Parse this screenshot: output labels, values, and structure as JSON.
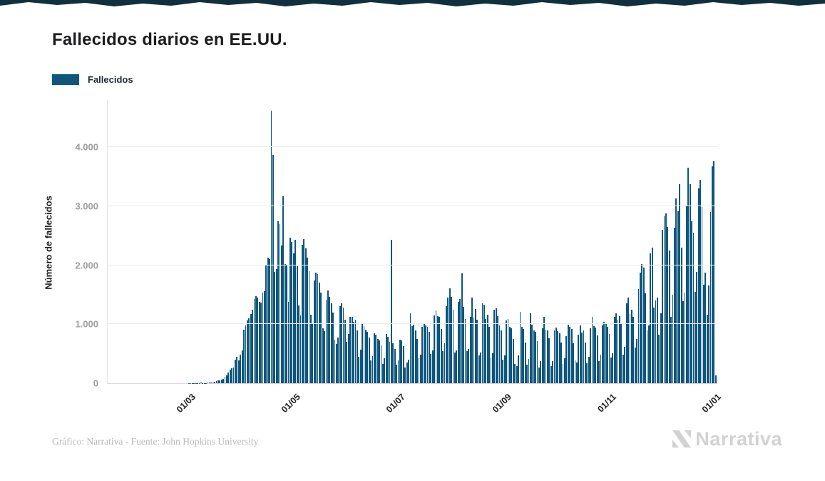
{
  "header": {
    "title": "Fallecidos diarios en EE.UU."
  },
  "legend": {
    "label": "Fallecidos",
    "color": "#0e567c"
  },
  "footer": {
    "credit": "Gráfico: Narrativa - Fuente: John Hopkins University",
    "brand": "Narrativa"
  },
  "colors": {
    "bar": "#0e567c",
    "grid": "#ececec",
    "axis_tick_text": "#9e9e9e",
    "title_text": "#1c1d1f",
    "footer_text": "#b9b9b9",
    "logo": "#d2d2d2"
  },
  "chart_data": {
    "type": "bar",
    "title": "Fallecidos diarios en EE.UU.",
    "series_name": "Fallecidos",
    "xlabel": "",
    "ylabel": "Número de fallecidos",
    "ylim": [
      0,
      4800
    ],
    "yticks": [
      0,
      1000,
      2000,
      3000,
      4000
    ],
    "ytick_labels": [
      "0",
      "1.000",
      "2.000",
      "3.000",
      "4.000"
    ],
    "xtick_labels": [
      "01/03",
      "01/05",
      "01/07",
      "01/09",
      "01/11",
      "01/01"
    ],
    "xtick_day_index": [
      48,
      109,
      170,
      232,
      293,
      354
    ],
    "x_start_date": "13/01/2020",
    "x_end_date": "01/01/2021",
    "grid": "horizontal",
    "legend_position": "top-left",
    "bar_color": "#0e567c",
    "values": [
      0,
      0,
      0,
      0,
      0,
      0,
      0,
      0,
      0,
      0,
      0,
      0,
      0,
      0,
      0,
      0,
      0,
      0,
      0,
      0,
      0,
      0,
      0,
      0,
      0,
      0,
      0,
      0,
      0,
      0,
      0,
      0,
      0,
      0,
      0,
      0,
      0,
      0,
      0,
      0,
      0,
      0,
      0,
      0,
      0,
      0,
      0,
      1,
      1,
      1,
      4,
      4,
      3,
      3,
      7,
      4,
      6,
      6,
      8,
      10,
      12,
      18,
      24,
      34,
      44,
      50,
      60,
      75,
      115,
      130,
      180,
      225,
      250,
      270,
      400,
      445,
      390,
      480,
      560,
      910,
      975,
      1060,
      1100,
      1170,
      1250,
      1430,
      1470,
      1450,
      1380,
      1370,
      1530,
      1560,
      2000,
      2130,
      2110,
      4620,
      3870,
      1890,
      1940,
      2750,
      2700,
      2330,
      3170,
      2020,
      1990,
      1380,
      2470,
      2390,
      2200,
      2430,
      1980,
      1320,
      1150,
      2350,
      2440,
      2280,
      2130,
      1900,
      1160,
      1000,
      1740,
      1880,
      1850,
      1700,
      1530,
      930,
      880,
      1420,
      1570,
      1460,
      1350,
      1200,
      740,
      670,
      780,
      1300,
      1360,
      1280,
      1080,
      700,
      830,
      1130,
      1120,
      1040,
      1080,
      890,
      450,
      570,
      1000,
      970,
      910,
      870,
      780,
      390,
      460,
      850,
      820,
      750,
      720,
      640,
      330,
      420,
      840,
      790,
      700,
      2430,
      680,
      580,
      320,
      390,
      740,
      720,
      630,
      270,
      350,
      400,
      1190,
      970,
      990,
      890,
      750,
      420,
      480,
      960,
      1010,
      980,
      950,
      870,
      490,
      560,
      1150,
      1230,
      1140,
      1120,
      920,
      540,
      680,
      1300,
      1450,
      1610,
      1460,
      1240,
      520,
      560,
      1380,
      1430,
      1860,
      1290,
      1090,
      540,
      580,
      1120,
      1450,
      1110,
      1260,
      1080,
      470,
      520,
      1350,
      1330,
      1090,
      1160,
      960,
      440,
      510,
      1240,
      1270,
      1140,
      980,
      890,
      400,
      470,
      1060,
      1090,
      960,
      930,
      750,
      330,
      290,
      470,
      1210,
      950,
      920,
      690,
      320,
      410,
      1180,
      990,
      890,
      870,
      710,
      270,
      380,
      930,
      1130,
      910,
      900,
      760,
      290,
      370,
      900,
      940,
      880,
      850,
      690,
      330,
      420,
      800,
      990,
      950,
      920,
      680,
      390,
      350,
      820,
      980,
      860,
      900,
      690,
      340,
      450,
      930,
      1120,
      970,
      940,
      810,
      370,
      480,
      980,
      1040,
      1010,
      950,
      840,
      430,
      510,
      1130,
      1190,
      1080,
      1140,
      1010,
      480,
      620,
      1350,
      1450,
      1170,
      1240,
      1130,
      610,
      750,
      1600,
      1870,
      2020,
      1960,
      1520,
      890,
      980,
      2200,
      2300,
      1280,
      1400,
      1450,
      820,
      1180,
      2600,
      2830,
      2880,
      2650,
      2250,
      1130,
      1500,
      2640,
      3130,
      2920,
      3370,
      2300,
      1390,
      1530,
      3010,
      3650,
      3370,
      2750,
      2550,
      1550,
      1890,
      3300,
      3440,
      2990,
      1670,
      1870,
      1160,
      1660,
      2900,
      3670,
      3760,
      130
    ]
  }
}
